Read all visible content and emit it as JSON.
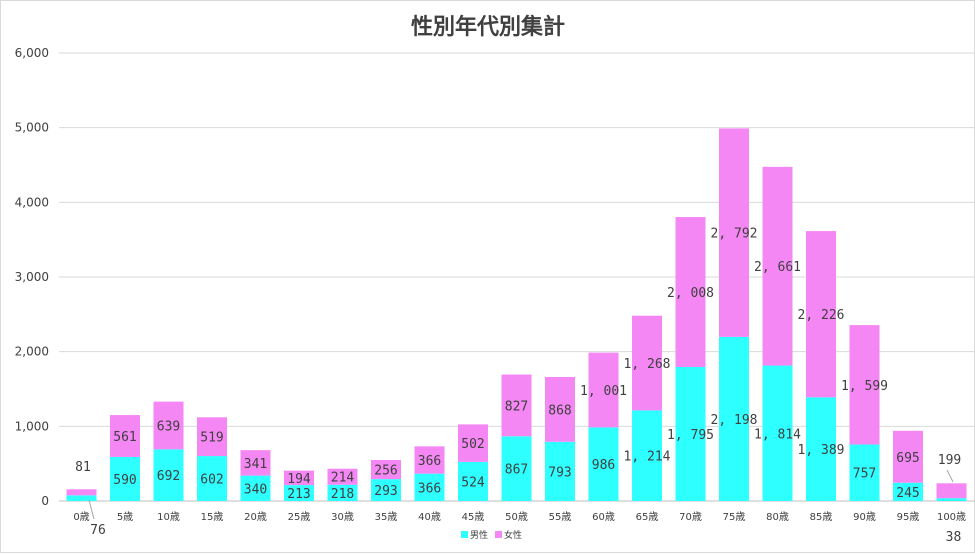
{
  "chart_data": {
    "type": "bar",
    "stacked": true,
    "title": "性別年代別集計",
    "categories": [
      "0歳",
      "5歳",
      "10歳",
      "15歳",
      "20歳",
      "25歳",
      "30歳",
      "35歳",
      "40歳",
      "45歳",
      "50歳",
      "55歳",
      "60歳",
      "65歳",
      "70歳",
      "75歳",
      "80歳",
      "85歳",
      "90歳",
      "95歳",
      "100歳"
    ],
    "series": [
      {
        "name": "男性",
        "color": "#2EFFFF",
        "values": [
          76,
          590,
          692,
          602,
          340,
          213,
          218,
          293,
          366,
          524,
          867,
          793,
          986,
          1214,
          1795,
          2198,
          1814,
          1389,
          757,
          245,
          38
        ],
        "labels": [
          "76",
          "590",
          "692",
          "602",
          "340",
          "213",
          "218",
          "293",
          "366",
          "524",
          "867",
          "793",
          "986",
          "1, 214",
          "1, 795",
          "2, 198",
          "1, 814",
          "1, 389",
          "757",
          "245",
          "38"
        ]
      },
      {
        "name": "女性",
        "color": "#F587F5",
        "values": [
          81,
          561,
          639,
          519,
          341,
          194,
          214,
          256,
          366,
          502,
          827,
          868,
          1001,
          1268,
          2008,
          2792,
          2661,
          2226,
          1599,
          695,
          199
        ],
        "labels": [
          "81",
          "561",
          "639",
          "519",
          "341",
          "194",
          "214",
          "256",
          "366",
          "502",
          "827",
          "868",
          "1, 001",
          "1, 268",
          "2, 008",
          "2, 792",
          "2, 661",
          "2, 226",
          "1, 599",
          "695",
          "199"
        ]
      }
    ],
    "ylim": [
      0,
      6000
    ],
    "yticks": [
      0,
      1000,
      2000,
      3000,
      4000,
      5000,
      6000
    ],
    "ytick_labels": [
      "0",
      "1,000",
      "2,000",
      "3,000",
      "4,000",
      "5,000",
      "6,000"
    ],
    "grid": true,
    "legend_position": "bottom",
    "xlabel": "",
    "ylabel": ""
  }
}
